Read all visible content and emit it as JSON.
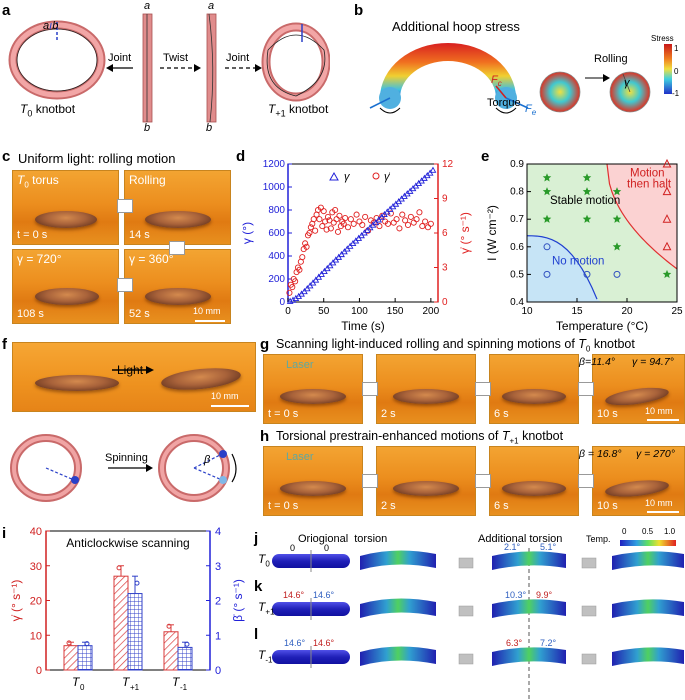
{
  "panels": {
    "a": {
      "label": "a",
      "ab_top": "a",
      "ab_sep": "b",
      "bar_top": "a",
      "bar_bot": "b",
      "twist_top": "a",
      "twist_bot": "b",
      "joint_left": "Joint",
      "twist": "Twist",
      "joint_right": "Joint",
      "t0": "T",
      "t0_sub": "0",
      "t0_suffix": " knotbot",
      "tp": "T",
      "tp_sub": "+1",
      "tp_suffix": " knotbot"
    },
    "b": {
      "label": "b",
      "title": "Additional hoop stress",
      "fc": "F",
      "fc_sub": "c",
      "fe": "F",
      "fe_sub": "e",
      "torque": "Torque",
      "rolling": "Rolling",
      "gamma": "γ",
      "stress": "Stress",
      "scale_max": "1",
      "scale_mid": "0",
      "scale_min": "-1"
    },
    "c": {
      "label": "c",
      "title": "Uniform light: rolling motion",
      "t0_torus": "T",
      "t0_torus_sub": "0",
      "t0_torus_suffix": " torus",
      "rolling": "Rolling",
      "t0": "t = 0 s",
      "t14": "14 s",
      "t108": "108 s",
      "t52": "52 s",
      "g720": "γ = 720°",
      "g360": "γ = 360°",
      "scale": "10 mm"
    },
    "d": {
      "label": "d"
    },
    "e": {
      "label": "e"
    },
    "f": {
      "label": "f",
      "light": "Light",
      "scale": "10 mm",
      "spinning": "Spinning",
      "beta": "β"
    },
    "g": {
      "label": "g",
      "title": "Scanning light-induced rolling and spinning motions of ",
      "title_t": "T",
      "title_sub": "0",
      "title_suffix": " knotbot",
      "laser": "Laser",
      "t0": "t = 0 s",
      "t2": "2 s",
      "t6": "6 s",
      "t10": "10 s",
      "beta": "β=11.4°",
      "gamma": "γ = 94.7°",
      "scale": "10 mm"
    },
    "h": {
      "label": "h",
      "title": "Torsional prestrain-enhanced motions of ",
      "title_t": "T",
      "title_sub": "+1",
      "title_suffix": " knotbot",
      "laser": "Laser",
      "t0": "t = 0 s",
      "t2": "2 s",
      "t6": "6 s",
      "t10": "10 s",
      "beta": "β = 16.8°",
      "gamma": "γ = 270°",
      "scale": "10 mm"
    },
    "i": {
      "label": "i"
    },
    "j": {
      "label": "j",
      "orig": "Oriogional  torsion",
      "add": "Additional torsion",
      "temp": "Temp.",
      "temp_ticks": [
        "0",
        "0.5",
        "1.0"
      ],
      "row": "T",
      "row_sub": "0",
      "zeros": [
        "0",
        "0"
      ],
      "v1": "2.1°",
      "v2": "5.1°"
    },
    "k": {
      "label": "k",
      "row": "T",
      "row_sub": "+1",
      "o1": "14.6°",
      "o2": "14.6°",
      "v1": "10.3°",
      "v2": "9.9°"
    },
    "l": {
      "label": "l",
      "row": "T",
      "row_sub": "-1",
      "o1": "14.6°",
      "o2": "14.6°",
      "v1": "6.3°",
      "v2": "7.2°"
    }
  },
  "chart_data": [
    {
      "type": "scatter",
      "panel": "d",
      "xlabel": "Time (s)",
      "ylabel_left": "γ (°)",
      "ylabel_right": "γ̇ (° s⁻¹)",
      "xlim": [
        0,
        210
      ],
      "ylim_left": [
        0,
        1200
      ],
      "ylim_right": [
        0,
        12
      ],
      "xticks": [
        "0",
        "50",
        "100",
        "150",
        "200"
      ],
      "yticks_left": [
        "0",
        "200",
        "400",
        "600",
        "800",
        "1000",
        "1200"
      ],
      "yticks_right": [
        "0",
        "3",
        "6",
        "9",
        "12"
      ],
      "legend": [
        "γ",
        "γ̇"
      ],
      "series": [
        {
          "name": "γ",
          "axis": "left",
          "color": "#2020d8",
          "x": [
            3,
            7,
            11,
            15,
            19,
            23,
            27,
            31,
            35,
            39,
            43,
            47,
            51,
            55,
            59,
            63,
            67,
            71,
            75,
            79,
            83,
            87,
            91,
            95,
            99,
            103,
            107,
            111,
            115,
            119,
            123,
            127,
            131,
            135,
            139,
            143,
            147,
            151,
            155,
            159,
            163,
            167,
            171,
            175,
            179,
            183,
            187,
            191,
            195,
            199,
            203
          ],
          "y": [
            5,
            15,
            30,
            48,
            68,
            90,
            115,
            140,
            165,
            190,
            215,
            240,
            265,
            290,
            315,
            340,
            365,
            388,
            412,
            436,
            460,
            484,
            508,
            530,
            553,
            576,
            600,
            622,
            645,
            668,
            690,
            713,
            736,
            760,
            782,
            805,
            828,
            850,
            872,
            895,
            918,
            940,
            962,
            985,
            1008,
            1030,
            1052,
            1075,
            1098,
            1120,
            1145
          ]
        },
        {
          "name": "γ̇",
          "axis": "right",
          "color": "#e02020",
          "x": [
            2,
            4,
            6,
            8,
            10,
            12,
            14,
            16,
            18,
            20,
            22,
            24,
            26,
            28,
            30,
            32,
            34,
            36,
            38,
            40,
            42,
            44,
            46,
            48,
            50,
            52,
            54,
            56,
            58,
            60,
            62,
            64,
            66,
            68,
            70,
            72,
            74,
            76,
            78,
            80,
            84,
            88,
            92,
            96,
            100,
            104,
            108,
            112,
            116,
            120,
            124,
            128,
            132,
            136,
            140,
            144,
            148,
            152,
            156,
            160,
            164,
            168,
            172,
            176,
            180,
            184,
            188,
            192,
            196,
            200
          ],
          "y": [
            0.8,
            1.5,
            1.3,
            2.0,
            1.8,
            2.6,
            3.0,
            2.8,
            3.5,
            3.9,
            4.6,
            5.1,
            4.8,
            5.8,
            6.0,
            6.5,
            6.8,
            7.2,
            6.2,
            7.6,
            8.0,
            7.2,
            8.2,
            6.6,
            7.9,
            7.0,
            6.3,
            7.4,
            7.1,
            6.4,
            7.8,
            6.9,
            8.0,
            7.2,
            6.1,
            7.5,
            6.6,
            7.0,
            6.8,
            7.3,
            6.5,
            7.2,
            6.8,
            7.6,
            7.0,
            6.7,
            7.4,
            6.2,
            7.1,
            6.9,
            7.3,
            6.6,
            7.5,
            7.0,
            6.8,
            7.7,
            6.9,
            7.2,
            6.4,
            7.6,
            7.1,
            6.7,
            7.4,
            6.9,
            7.2,
            7.8,
            6.6,
            7.0,
            6.5,
            6.8
          ]
        }
      ]
    },
    {
      "type": "scatter",
      "panel": "e",
      "xlabel": "Temperature (°C)",
      "ylabel": "I (W cm⁻²)",
      "xlim": [
        10,
        25
      ],
      "ylim": [
        0.4,
        0.9
      ],
      "xticks": [
        "10",
        "15",
        "20",
        "25"
      ],
      "yticks": [
        "0.4",
        "0.5",
        "0.6",
        "0.7",
        "0.8",
        "0.9"
      ],
      "regions": [
        "Stable motion",
        "Motion then halt",
        "No motion"
      ],
      "series": [
        {
          "name": "No motion",
          "marker": "circle",
          "color": "#3050c0",
          "x": [
            12,
            12,
            16,
            19
          ],
          "y": [
            0.5,
            0.6,
            0.5,
            0.5
          ]
        },
        {
          "name": "Stable motion",
          "marker": "star",
          "color": "#2a9a2a",
          "x": [
            12,
            12,
            12,
            16,
            16,
            16,
            19,
            19,
            19,
            24
          ],
          "y": [
            0.7,
            0.8,
            0.85,
            0.7,
            0.8,
            0.85,
            0.6,
            0.7,
            0.8,
            0.5
          ]
        },
        {
          "name": "Motion then halt",
          "marker": "triangle",
          "color": "#d02020",
          "x": [
            24,
            24,
            24,
            24
          ],
          "y": [
            0.6,
            0.7,
            0.8,
            0.9
          ]
        }
      ]
    },
    {
      "type": "bar",
      "panel": "i",
      "title": "Anticlockwise scanning",
      "categories": [
        "T0",
        "T+1",
        "T-1"
      ],
      "category_labels": [
        {
          "t": "T",
          "s": "0"
        },
        {
          "t": "T",
          "s": "+1"
        },
        {
          "t": "T",
          "s": "-1"
        }
      ],
      "ylabel_left": "γ̇ (° s⁻¹)",
      "ylabel_right": "β̇ (° s⁻¹)",
      "ylim_left": [
        0,
        40
      ],
      "ylim_right": [
        0,
        4
      ],
      "yticks_left": [
        "0",
        "10",
        "20",
        "30",
        "40"
      ],
      "yticks_right": [
        "0",
        "1",
        "2",
        "3",
        "4"
      ],
      "series": [
        {
          "name": "γ̇",
          "axis": "left",
          "color": "#d83a3a",
          "values": [
            7,
            27,
            11
          ],
          "errors": [
            1,
            3,
            2
          ]
        },
        {
          "name": "β̇",
          "axis": "right",
          "color": "#3040c8",
          "values": [
            0.7,
            2.2,
            0.65
          ],
          "errors": [
            0.1,
            0.5,
            0.15
          ]
        }
      ]
    }
  ]
}
